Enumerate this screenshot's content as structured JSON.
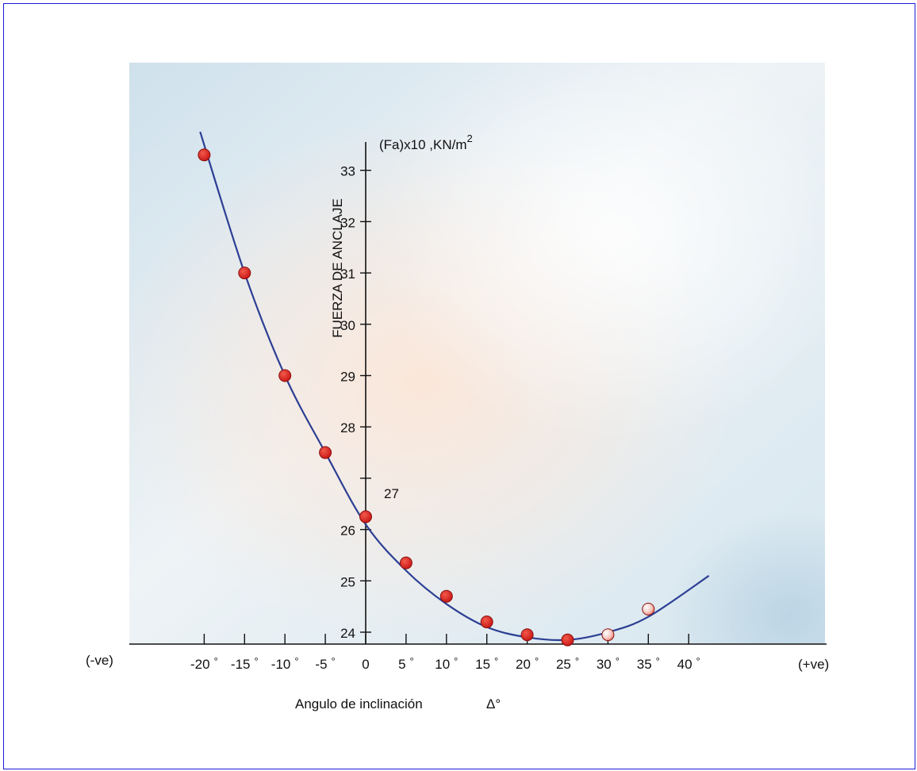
{
  "chart_data": {
    "type": "line",
    "ylabel": "FUERZA DE ANCLAJE",
    "y_unit": "(Fa)x10 ,KN/m",
    "y_unit_exponent": "2",
    "xlabel": "Angulo de inclinación",
    "xlabel_symbol": "Δ°",
    "x_left_label": "(-ve)",
    "x_right_label": "(+ve)",
    "degree_symbol": "°",
    "x_ticks": [
      -20,
      -15,
      -10,
      -5,
      0,
      5,
      10,
      15,
      20,
      25,
      30,
      35,
      40
    ],
    "y_ticks": [
      24,
      25,
      26,
      27,
      28,
      29,
      30,
      31,
      32,
      33
    ],
    "xlim": [
      -22,
      44
    ],
    "ylim": [
      23.8,
      33.8
    ],
    "grid": false,
    "points": {
      "x": [
        -20,
        -15,
        -10,
        -5,
        0,
        5,
        10,
        15,
        20,
        25,
        30,
        35
      ],
      "y": [
        33.3,
        31.0,
        29.0,
        27.5,
        26.25,
        25.35,
        24.7,
        24.2,
        23.95,
        23.85,
        23.95,
        24.45
      ]
    },
    "curve": {
      "x": [
        -20.5,
        -15,
        -10,
        -5,
        0,
        5,
        10,
        15,
        20,
        25,
        30,
        35,
        42.5
      ],
      "y": [
        33.75,
        31.0,
        29.0,
        27.5,
        26.1,
        25.2,
        24.55,
        24.1,
        23.9,
        23.85,
        24.0,
        24.3,
        25.1
      ]
    },
    "colors": {
      "line": "#2c3f94",
      "marker": "#d42020",
      "marker_light": "#f3b0a8",
      "marker_edge": "#8a1010",
      "frame": "#1a1ad6"
    }
  }
}
